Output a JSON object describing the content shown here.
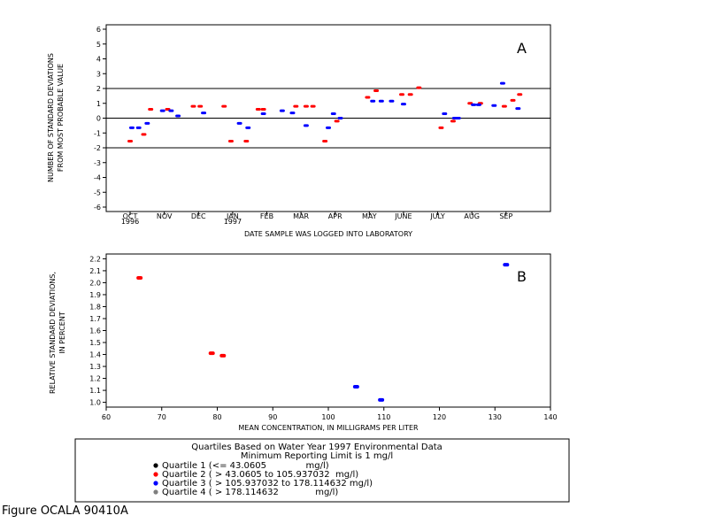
{
  "caption": "Figure OCALA 90410A",
  "colors": {
    "quartile1": "#000000",
    "quartile2": "#ff0000",
    "quartile3": "#0000ff",
    "quartile4": "#7f7f7f"
  },
  "legend": {
    "title_line1": "Quartiles Based on Water Year 1997 Environmental Data",
    "title_line2": "Minimum Reporting Limit is 1 mg/l",
    "entries": [
      {
        "label": "Quartile 1 (<= 43.0605              mg/l)",
        "color": "#000000"
      },
      {
        "label": "Quartile 2 ( > 43.0605 to 105.937032  mg/l)",
        "color": "#ff0000"
      },
      {
        "label": "Quartile 3 ( > 105.937032 to 178.114632 mg/l)",
        "color": "#0000ff"
      },
      {
        "label": "Quartile 4 ( > 178.114632             mg/l)",
        "color": "#7f7f7f"
      }
    ]
  },
  "chart_data": [
    {
      "panel": "A",
      "type": "scatter",
      "title": "",
      "ylabel_line1": "NUMBER OF STANDARD DEVIATIONS",
      "ylabel_line2": "FROM MOST PROBABLE VALUE",
      "xlabel": "DATE SAMPLE WAS LOGGED INTO LABORATORY",
      "ylim": [
        -6,
        6
      ],
      "yticks": [
        -6,
        -5,
        -4,
        -3,
        -2,
        -1,
        0,
        1,
        2,
        3,
        4,
        5,
        6
      ],
      "reference_lines": [
        2,
        0,
        -2
      ],
      "grid": false,
      "x_unit": "months after 1996-10-01",
      "xlim": [
        -0.7,
        12.3
      ],
      "month_ticks": [
        {
          "label": "OCT",
          "sub": "1996",
          "x": 0
        },
        {
          "label": "NOV",
          "sub": "",
          "x": 1
        },
        {
          "label": "DEC",
          "sub": "",
          "x": 2
        },
        {
          "label": "JAN",
          "sub": "1997",
          "x": 3
        },
        {
          "label": "FEB",
          "sub": "",
          "x": 4
        },
        {
          "label": "MAR",
          "sub": "",
          "x": 5
        },
        {
          "label": "APR",
          "sub": "",
          "x": 6
        },
        {
          "label": "MAY",
          "sub": "",
          "x": 7
        },
        {
          "label": "JUNE",
          "sub": "",
          "x": 8
        },
        {
          "label": "JULY",
          "sub": "",
          "x": 9
        },
        {
          "label": "AUG",
          "sub": "",
          "x": 10
        },
        {
          "label": "SEP",
          "sub": "",
          "x": 11
        }
      ],
      "series": [
        {
          "quartile": 2,
          "color": "#ff0000",
          "points": [
            [
              0.0,
              -1.55
            ],
            [
              0.4,
              -1.1
            ],
            [
              0.6,
              0.6
            ],
            [
              1.1,
              0.6
            ],
            [
              1.85,
              0.8
            ],
            [
              2.05,
              0.8
            ],
            [
              2.75,
              0.8
            ],
            [
              2.95,
              -1.55
            ],
            [
              3.4,
              -1.55
            ],
            [
              3.75,
              0.6
            ],
            [
              3.9,
              0.6
            ],
            [
              4.85,
              0.8
            ],
            [
              5.15,
              0.8
            ],
            [
              5.35,
              0.8
            ],
            [
              5.7,
              -1.55
            ],
            [
              6.05,
              -0.2
            ],
            [
              6.95,
              1.4
            ],
            [
              7.2,
              1.85
            ],
            [
              7.95,
              1.6
            ],
            [
              8.2,
              1.6
            ],
            [
              8.45,
              2.05
            ],
            [
              9.1,
              -0.65
            ],
            [
              9.45,
              -0.2
            ],
            [
              9.95,
              1.0
            ],
            [
              10.25,
              1.0
            ],
            [
              10.95,
              0.8
            ],
            [
              11.2,
              1.2
            ],
            [
              11.4,
              1.6
            ]
          ]
        },
        {
          "quartile": 3,
          "color": "#0000ff",
          "points": [
            [
              0.05,
              -0.65
            ],
            [
              0.25,
              -0.65
            ],
            [
              0.5,
              -0.35
            ],
            [
              0.95,
              0.5
            ],
            [
              1.2,
              0.5
            ],
            [
              1.4,
              0.15
            ],
            [
              2.15,
              0.35
            ],
            [
              3.2,
              -0.35
            ],
            [
              3.45,
              -0.65
            ],
            [
              3.9,
              0.3
            ],
            [
              4.45,
              0.5
            ],
            [
              4.75,
              0.35
            ],
            [
              5.15,
              -0.5
            ],
            [
              5.8,
              -0.65
            ],
            [
              5.95,
              0.3
            ],
            [
              6.15,
              0.0
            ],
            [
              7.1,
              1.15
            ],
            [
              7.35,
              1.15
            ],
            [
              7.65,
              1.15
            ],
            [
              8.0,
              0.95
            ],
            [
              9.2,
              0.3
            ],
            [
              9.5,
              0.0
            ],
            [
              9.6,
              0.0
            ],
            [
              10.05,
              0.9
            ],
            [
              10.2,
              0.9
            ],
            [
              10.65,
              0.85
            ],
            [
              10.9,
              2.35
            ],
            [
              11.35,
              0.65
            ]
          ]
        }
      ]
    },
    {
      "panel": "B",
      "type": "scatter",
      "title": "",
      "ylabel_line1": "RELATIVE STANDARD DEVIATIONS,",
      "ylabel_line2": "IN PERCENT",
      "xlabel": "MEAN CONCENTRATION, IN MILLIGRAMS PER LITER",
      "xlim": [
        60,
        140
      ],
      "xticks": [
        60,
        70,
        80,
        90,
        100,
        110,
        120,
        130,
        140
      ],
      "ylim": [
        0.96,
        2.24
      ],
      "yticks": [
        1.0,
        1.1,
        1.2,
        1.3,
        1.4,
        1.5,
        1.6,
        1.7,
        1.8,
        1.9,
        2.0,
        2.1,
        2.2
      ],
      "grid": false,
      "series": [
        {
          "quartile": 2,
          "color": "#ff0000",
          "points": [
            [
              66.0,
              2.04
            ],
            [
              79.0,
              1.41
            ],
            [
              81.0,
              1.39
            ]
          ]
        },
        {
          "quartile": 3,
          "color": "#0000ff",
          "points": [
            [
              105.0,
              1.13
            ],
            [
              109.5,
              1.02
            ],
            [
              132.0,
              2.15
            ]
          ]
        }
      ]
    }
  ]
}
